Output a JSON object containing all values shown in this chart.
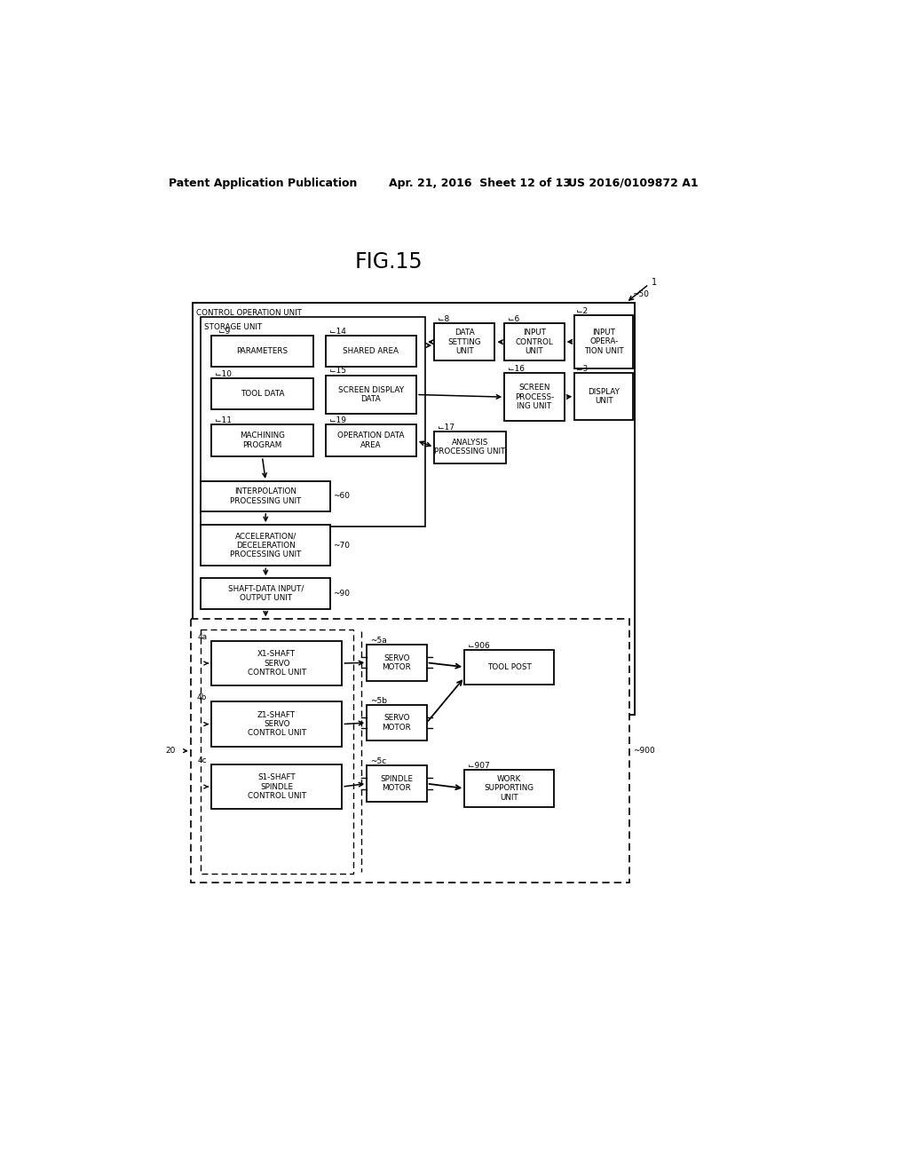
{
  "title": "FIG.15",
  "header_left": "Patent Application Publication",
  "header_mid": "Apr. 21, 2016  Sheet 12 of 13",
  "header_right": "US 2016/0109872 A1",
  "bg_color": "#ffffff",
  "line_color": "#000000"
}
